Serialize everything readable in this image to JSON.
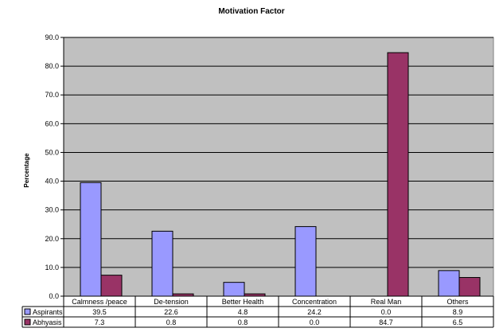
{
  "chart_data": {
    "type": "bar",
    "title": "Motivation Factor",
    "xlabel": "",
    "ylabel": "Percentage",
    "ylim": [
      0,
      90
    ],
    "yticks": [
      "0.0",
      "10.0",
      "20.0",
      "30.0",
      "40.0",
      "50.0",
      "60.0",
      "70.0",
      "80.0",
      "90.0"
    ],
    "categories": [
      "Calmness /peace",
      "De-tension",
      "Better Health",
      "Concentration",
      "Real Man",
      "Others"
    ],
    "series": [
      {
        "name": "Aspirants",
        "color": "#9999ff",
        "values": [
          39.5,
          22.6,
          4.8,
          24.2,
          0.0,
          8.9
        ],
        "labels": [
          "39.5",
          "22.6",
          "4.8",
          "24.2",
          "0.0",
          "8.9"
        ]
      },
      {
        "name": "Abhyasis",
        "color": "#993366",
        "values": [
          7.3,
          0.8,
          0.8,
          0.0,
          84.7,
          6.5
        ],
        "labels": [
          "7.3",
          "0.8",
          "0.8",
          "0.0",
          "84.7",
          "6.5"
        ]
      }
    ],
    "grid": true,
    "plot_background": "#c0c0c0",
    "legend": "data-table"
  }
}
